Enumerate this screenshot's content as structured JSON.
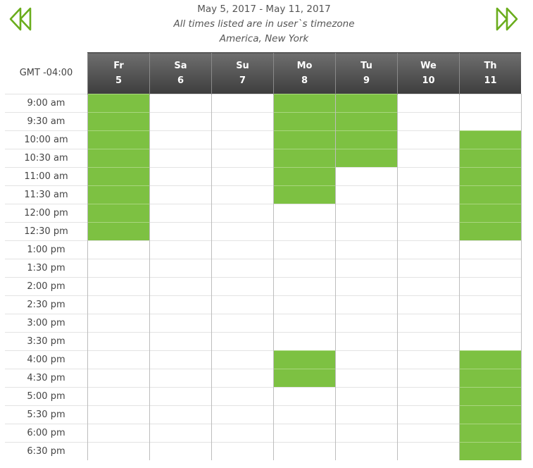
{
  "header": {
    "date_range": "May 5, 2017 - May 11, 2017",
    "tz_note": "All times listed are in user`s timezone",
    "tz_name": "America, New York"
  },
  "grid": {
    "gmt_label": "GMT -04:00",
    "days": [
      {
        "abbr": "Fr",
        "date": "5"
      },
      {
        "abbr": "Sa",
        "date": "6"
      },
      {
        "abbr": "Su",
        "date": "7"
      },
      {
        "abbr": "Mo",
        "date": "8"
      },
      {
        "abbr": "Tu",
        "date": "9"
      },
      {
        "abbr": "We",
        "date": "10"
      },
      {
        "abbr": "Th",
        "date": "11"
      }
    ],
    "times": [
      "9:00 am",
      "9:30 am",
      "10:00 am",
      "10:30 am",
      "11:00 am",
      "11:30 am",
      "12:00 pm",
      "12:30 pm",
      "1:00 pm",
      "1:30 pm",
      "2:00 pm",
      "2:30 pm",
      "3:00 pm",
      "3:30 pm",
      "4:00 pm",
      "4:30 pm",
      "5:00 pm",
      "5:30 pm",
      "6:00 pm",
      "6:30 pm"
    ],
    "available": [
      [
        1,
        0,
        0,
        1,
        1,
        0,
        0
      ],
      [
        1,
        0,
        0,
        1,
        1,
        0,
        0
      ],
      [
        1,
        0,
        0,
        1,
        1,
        0,
        1
      ],
      [
        1,
        0,
        0,
        1,
        1,
        0,
        1
      ],
      [
        1,
        0,
        0,
        1,
        0,
        0,
        1
      ],
      [
        1,
        0,
        0,
        1,
        0,
        0,
        1
      ],
      [
        1,
        0,
        0,
        0,
        0,
        0,
        1
      ],
      [
        1,
        0,
        0,
        0,
        0,
        0,
        1
      ],
      [
        0,
        0,
        0,
        0,
        0,
        0,
        0
      ],
      [
        0,
        0,
        0,
        0,
        0,
        0,
        0
      ],
      [
        0,
        0,
        0,
        0,
        0,
        0,
        0
      ],
      [
        0,
        0,
        0,
        0,
        0,
        0,
        0
      ],
      [
        0,
        0,
        0,
        0,
        0,
        0,
        0
      ],
      [
        0,
        0,
        0,
        0,
        0,
        0,
        0
      ],
      [
        0,
        0,
        0,
        1,
        0,
        0,
        1
      ],
      [
        0,
        0,
        0,
        1,
        0,
        0,
        1
      ],
      [
        0,
        0,
        0,
        0,
        0,
        0,
        1
      ],
      [
        0,
        0,
        0,
        0,
        0,
        0,
        1
      ],
      [
        0,
        0,
        0,
        0,
        0,
        0,
        1
      ],
      [
        0,
        0,
        0,
        0,
        0,
        0,
        1
      ]
    ]
  },
  "icons": {
    "prev": "rewind-icon",
    "next": "fast-forward-icon"
  },
  "colors": {
    "available": "#7dc142",
    "nav_icon": "#6aad1c",
    "header_dark": "#3d3d3d"
  }
}
